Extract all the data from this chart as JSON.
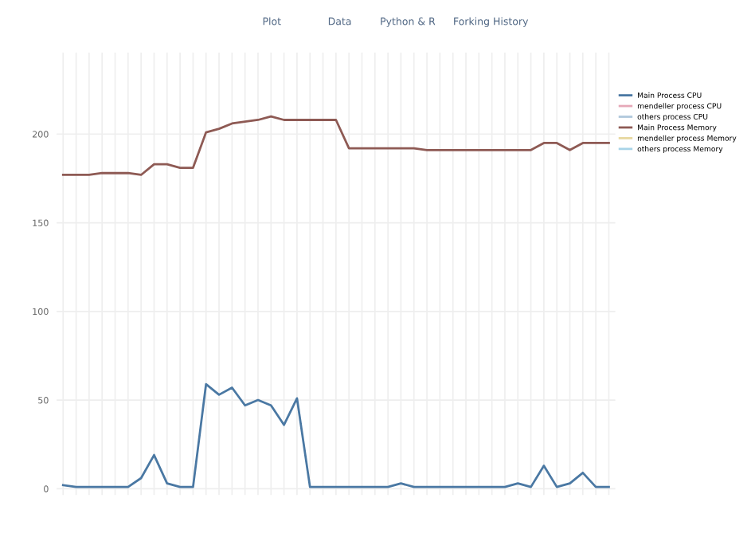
{
  "chart_data": {
    "type": "line",
    "annotations": [
      "Plot",
      "Data",
      "Python & R",
      "Forking History"
    ],
    "categories": [
      null,
      null,
      null,
      null,
      null,
      null,
      null,
      null,
      null,
      null,
      null,
      null,
      null,
      null,
      null,
      null,
      null,
      null,
      null,
      null,
      null,
      null,
      null,
      null,
      null,
      null,
      null,
      null,
      null,
      null,
      null,
      null,
      null,
      null,
      null,
      null,
      null,
      null,
      null,
      null,
      null,
      null,
      null
    ],
    "series": [
      {
        "name": "Main Process CPU",
        "color": "#4a78a3",
        "values": [
          2,
          1,
          1,
          1,
          1,
          1,
          6,
          19,
          3,
          1,
          1,
          59,
          53,
          57,
          47,
          50,
          47,
          36,
          51,
          1,
          1,
          1,
          1,
          1,
          1,
          1,
          3,
          1,
          1,
          1,
          1,
          1,
          1,
          1,
          1,
          3,
          1,
          13,
          1,
          3,
          9,
          1,
          1
        ]
      },
      {
        "name": "mendeller process CPU",
        "color": "#e6a8b8",
        "values": [
          null,
          null,
          null,
          null,
          null,
          null,
          null,
          null,
          null,
          null,
          null,
          null,
          null,
          null,
          null,
          null,
          null,
          null,
          null,
          null,
          null,
          null,
          null,
          null,
          null,
          null,
          null,
          null,
          null,
          null,
          null,
          null,
          null,
          null,
          null,
          null,
          null,
          null,
          null,
          null,
          null,
          null,
          null
        ]
      },
      {
        "name": "others process CPU",
        "color": "#b0c8dc",
        "values": [
          null,
          null,
          null,
          null,
          null,
          null,
          null,
          null,
          null,
          null,
          null,
          null,
          null,
          null,
          null,
          null,
          null,
          null,
          null,
          null,
          null,
          null,
          null,
          null,
          null,
          null,
          null,
          null,
          null,
          null,
          null,
          null,
          null,
          null,
          null,
          null,
          null,
          null,
          null,
          null,
          null,
          null,
          null
        ]
      },
      {
        "name": "Main Process Memory",
        "color": "#8e5a54",
        "values": [
          177,
          177,
          177,
          178,
          178,
          178,
          177,
          183,
          183,
          181,
          181,
          201,
          203,
          206,
          207,
          208,
          210,
          208,
          208,
          208,
          208,
          208,
          192,
          192,
          192,
          192,
          192,
          192,
          191,
          191,
          191,
          191,
          191,
          191,
          191,
          191,
          191,
          195,
          195,
          191,
          195,
          195,
          195
        ]
      },
      {
        "name": "mendeller process Memory",
        "color": "#e8d8a0",
        "values": [
          null,
          null,
          null,
          null,
          null,
          null,
          null,
          null,
          null,
          null,
          null,
          null,
          null,
          null,
          null,
          null,
          null,
          null,
          null,
          null,
          null,
          null,
          null,
          null,
          null,
          null,
          null,
          null,
          null,
          null,
          null,
          null,
          null,
          null,
          null,
          null,
          null,
          null,
          null,
          null,
          null,
          null,
          null
        ]
      },
      {
        "name": "others process Memory",
        "color": "#a8d4e8",
        "values": [
          null,
          null,
          null,
          null,
          null,
          null,
          null,
          null,
          null,
          null,
          null,
          null,
          null,
          null,
          null,
          null,
          null,
          null,
          null,
          null,
          null,
          null,
          null,
          null,
          null,
          null,
          null,
          null,
          null,
          null,
          null,
          null,
          null,
          null,
          null,
          null,
          null,
          null,
          null,
          null,
          null,
          null,
          null
        ]
      }
    ],
    "ylim": [
      -3.5,
      246
    ],
    "yticks": [
      0,
      50,
      100,
      150,
      200
    ],
    "grid": true,
    "legend": "top right",
    "marker": "none",
    "line_style": "solid"
  }
}
